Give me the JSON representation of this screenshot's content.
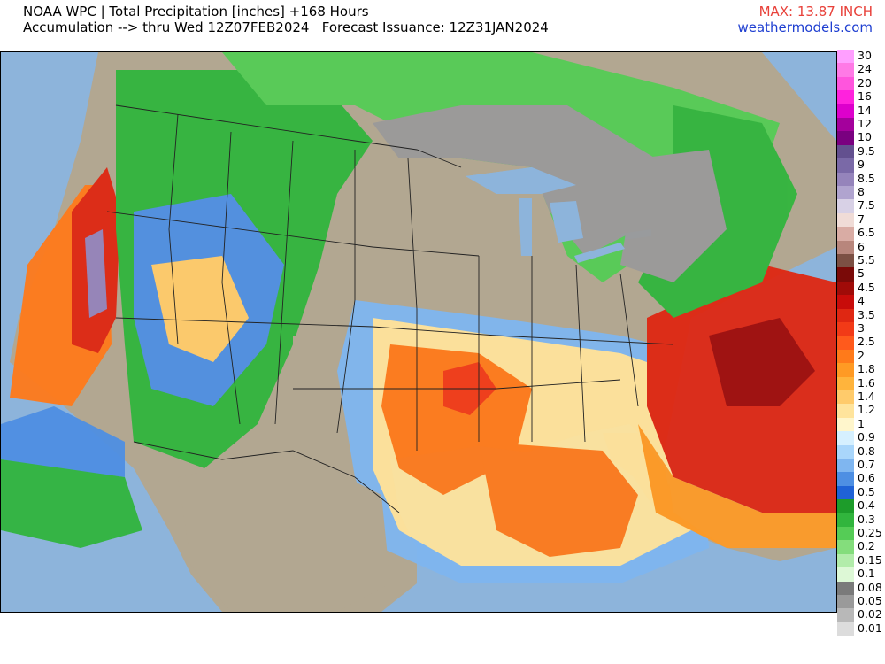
{
  "header": {
    "title_line_1": "NOAA WPC | Total Precipitation [inches] +168 Hours",
    "title_line_2": "Accumulation --> thru Wed 12Z07FEB2024   Forecast Issuance: 12Z31JAN2024",
    "max_label": "MAX: 13.87 INCH",
    "site_label": "weathermodels.com",
    "max_color": "#e8413a",
    "site_color": "#1f3fd1"
  },
  "map": {
    "region": "Contiguous United States, southern Canada, northern Mexico",
    "ocean_color": "#8db4db",
    "land_color": "#b2a791"
  },
  "legend": {
    "units": "inches",
    "items": [
      {
        "label": "30",
        "color": "#ff9fff"
      },
      {
        "label": "24",
        "color": "#ff7ae6"
      },
      {
        "label": "20",
        "color": "#ff55dd"
      },
      {
        "label": "16",
        "color": "#ff22dd"
      },
      {
        "label": "14",
        "color": "#dd00cc"
      },
      {
        "label": "12",
        "color": "#a4009c"
      },
      {
        "label": "10",
        "color": "#7a0080"
      },
      {
        "label": "9.5",
        "color": "#63508f"
      },
      {
        "label": "9",
        "color": "#7a69a7"
      },
      {
        "label": "8.5",
        "color": "#9584bb"
      },
      {
        "label": "8",
        "color": "#b0a4cf"
      },
      {
        "label": "7.5",
        "color": "#d8d1e6"
      },
      {
        "label": "7",
        "color": "#f0dcd7"
      },
      {
        "label": "6.5",
        "color": "#d9aca4"
      },
      {
        "label": "6",
        "color": "#b8867c"
      },
      {
        "label": "5.5",
        "color": "#7c5044"
      },
      {
        "label": "5",
        "color": "#7a0a08"
      },
      {
        "label": "4.5",
        "color": "#a00b08"
      },
      {
        "label": "4",
        "color": "#c80c0a"
      },
      {
        "label": "3.5",
        "color": "#df2712"
      },
      {
        "label": "3",
        "color": "#f23a17"
      },
      {
        "label": "2.5",
        "color": "#ff5a1c"
      },
      {
        "label": "2",
        "color": "#ff7a1a"
      },
      {
        "label": "1.8",
        "color": "#ff9a24"
      },
      {
        "label": "1.6",
        "color": "#ffb43c"
      },
      {
        "label": "1.4",
        "color": "#ffcb6b"
      },
      {
        "label": "1.2",
        "color": "#ffe49c"
      },
      {
        "label": "1",
        "color": "#fff6cc"
      },
      {
        "label": "0.9",
        "color": "#d6f0ff"
      },
      {
        "label": "0.8",
        "color": "#a9d6fb"
      },
      {
        "label": "0.7",
        "color": "#7fb6f0"
      },
      {
        "label": "0.6",
        "color": "#4e8fe3"
      },
      {
        "label": "0.5",
        "color": "#1f62d6"
      },
      {
        "label": "0.4",
        "color": "#1d9c2a"
      },
      {
        "label": "0.3",
        "color": "#31b53d"
      },
      {
        "label": "0.25",
        "color": "#55cc56"
      },
      {
        "label": "0.2",
        "color": "#84dd7c"
      },
      {
        "label": "0.15",
        "color": "#b2ecaa"
      },
      {
        "label": "0.1",
        "color": "#ddf8d6"
      },
      {
        "label": "0.08",
        "color": "#7a7a7a"
      },
      {
        "label": "0.05",
        "color": "#9a9a9a"
      },
      {
        "label": "0.02",
        "color": "#b8b8b8"
      },
      {
        "label": "0.01",
        "color": "#dcdcdc"
      }
    ]
  }
}
